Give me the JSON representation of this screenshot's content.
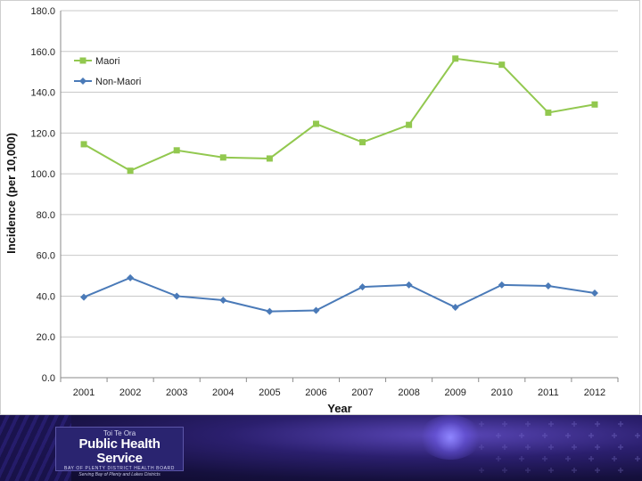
{
  "chart_data": {
    "type": "line",
    "title": "",
    "xlabel": "Year",
    "ylabel": "Incidence (per 10,000)",
    "categories": [
      "2001",
      "2002",
      "2003",
      "2004",
      "2005",
      "2006",
      "2007",
      "2008",
      "2009",
      "2010",
      "2011",
      "2012"
    ],
    "ylim": [
      0,
      180
    ],
    "yticks": [
      "0.0",
      "20.0",
      "40.0",
      "60.0",
      "80.0",
      "100.0",
      "120.0",
      "140.0",
      "160.0",
      "180.0"
    ],
    "grid": true,
    "legend_position": "top-left",
    "series": [
      {
        "name": "Maori",
        "color": "#92c84f",
        "marker": "square",
        "values": [
          114.5,
          101.5,
          111.5,
          108.0,
          107.5,
          124.5,
          115.5,
          124.0,
          156.5,
          153.5,
          130.0,
          134.0
        ]
      },
      {
        "name": "Non-Maori",
        "color": "#4a7ab8",
        "marker": "diamond",
        "values": [
          39.5,
          49.0,
          40.0,
          38.0,
          32.5,
          33.0,
          44.5,
          45.5,
          34.5,
          45.5,
          45.0,
          41.5
        ]
      }
    ]
  },
  "footer": {
    "logo_top": "Toi Te Ora",
    "logo_main": "Public Health Service",
    "logo_sub": "BAY OF PLENTY DISTRICT HEALTH BOARD",
    "logo_tagline": "Serving Bay of Plenty and Lakes Districts",
    "background_color": "#1a1450",
    "accent_color": "#6a5cd6"
  }
}
